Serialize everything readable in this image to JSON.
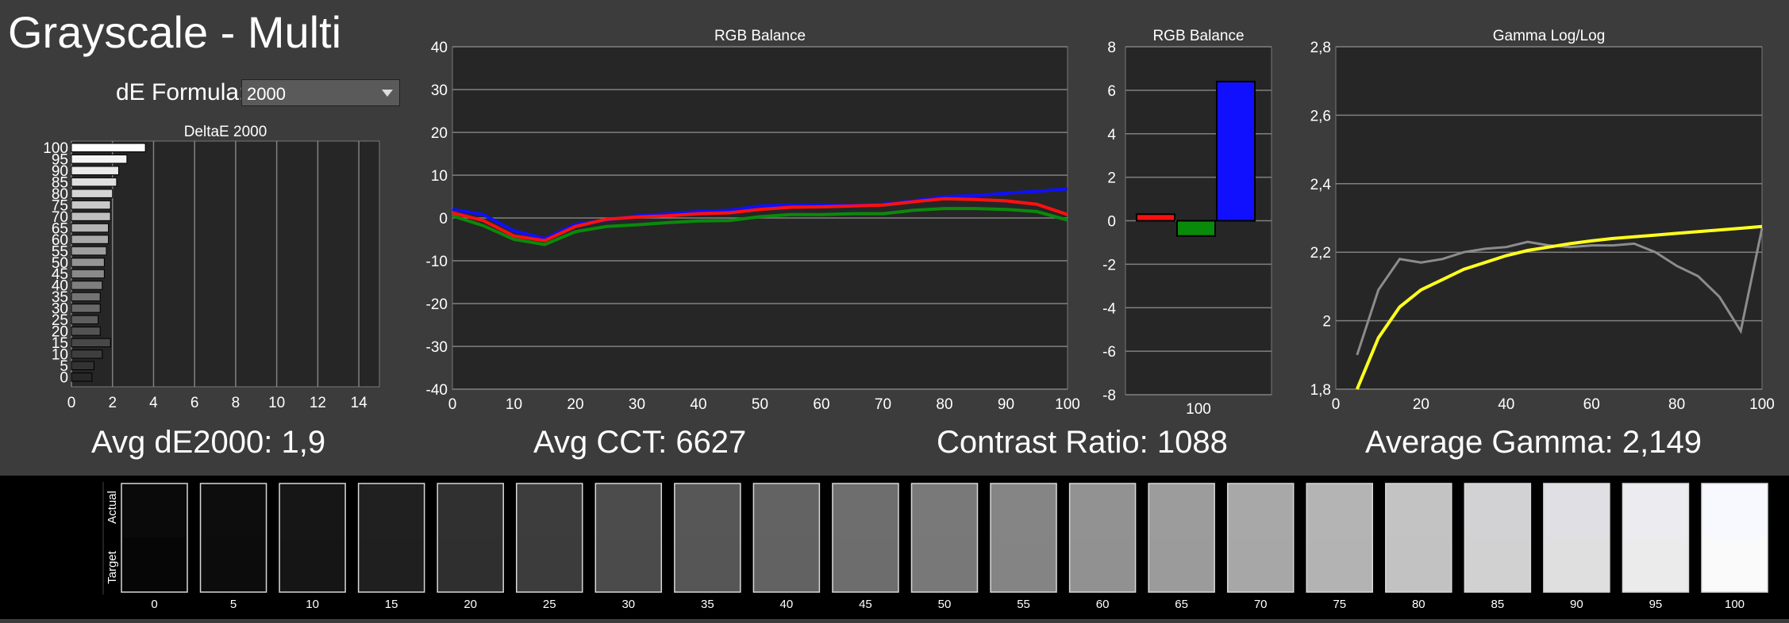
{
  "app": {
    "title": "Grayscale - Multi",
    "de_formula_label": "dE Formula:",
    "de_formula_value": "2000"
  },
  "stats": {
    "avg_de": "Avg dE2000: 1,9",
    "avg_cct": "Avg CCT: 6627",
    "contrast": "Contrast Ratio: 1088",
    "avg_gamma": "Average Gamma: 2,149"
  },
  "colors": {
    "background": "#3c3c3c",
    "plot_bg": "#262626",
    "red": "#ff1010",
    "green": "#0a8a0a",
    "blue": "#1010ff",
    "gamma_target": "#ffff20",
    "gamma_measured": "#8c8c8c"
  },
  "chart_data": [
    {
      "type": "bar",
      "orientation": "horizontal",
      "title": "DeltaE 2000",
      "categories": [
        "100",
        "95",
        "90",
        "85",
        "80",
        "75",
        "70",
        "65",
        "60",
        "55",
        "50",
        "45",
        "40",
        "35",
        "30",
        "25",
        "20",
        "15",
        "10",
        "5",
        "0"
      ],
      "values": [
        3.6,
        2.7,
        2.3,
        2.2,
        2.0,
        1.9,
        1.9,
        1.8,
        1.8,
        1.7,
        1.6,
        1.6,
        1.5,
        1.4,
        1.4,
        1.3,
        1.4,
        1.9,
        1.5,
        1.1,
        1.0
      ],
      "xlim": [
        0,
        15
      ],
      "xticks": [
        "0",
        "2",
        "4",
        "6",
        "8",
        "10",
        "12",
        "14"
      ],
      "yticks": [
        "100",
        "95",
        "90",
        "85",
        "80",
        "75",
        "70",
        "65",
        "60",
        "55",
        "50",
        "45",
        "40",
        "35",
        "30",
        "25",
        "20",
        "15",
        "10",
        "5",
        "0"
      ]
    },
    {
      "type": "line",
      "title": "RGB Balance",
      "x": [
        0,
        5,
        10,
        15,
        20,
        25,
        30,
        35,
        40,
        45,
        50,
        55,
        60,
        65,
        70,
        75,
        80,
        85,
        90,
        95,
        100
      ],
      "series": [
        {
          "values": [
            2.0,
            0.8,
            -3.0,
            -4.8,
            -1.5,
            -0.5,
            0.5,
            1.0,
            1.5,
            1.8,
            2.8,
            3.0,
            3.0,
            3.0,
            3.2,
            4.0,
            5.0,
            5.2,
            5.8,
            6.2,
            6.8
          ]
        },
        {
          "values": [
            1.2,
            -0.6,
            -4.2,
            -5.3,
            -2.0,
            -0.3,
            0.2,
            0.5,
            1.0,
            1.2,
            2.0,
            2.5,
            2.6,
            2.8,
            3.0,
            3.8,
            4.5,
            4.3,
            4.0,
            3.2,
            0.8
          ]
        },
        {
          "values": [
            0.5,
            -1.8,
            -5.0,
            -6.2,
            -3.2,
            -2.0,
            -1.6,
            -1.1,
            -0.7,
            -0.6,
            0.3,
            0.8,
            0.8,
            1.0,
            1.0,
            1.8,
            2.2,
            2.2,
            2.0,
            1.5,
            -0.5
          ]
        }
      ],
      "xlim": [
        0,
        100
      ],
      "ylim": [
        -40,
        40
      ],
      "xticks": [
        "0",
        "10",
        "20",
        "30",
        "40",
        "50",
        "60",
        "70",
        "80",
        "90",
        "100"
      ],
      "yticks": [
        "40",
        "30",
        "20",
        "10",
        "0",
        "-10",
        "-20",
        "-30",
        "-40"
      ]
    },
    {
      "type": "bar",
      "title": "RGB Balance",
      "categories": [
        "100"
      ],
      "series": [
        {
          "values": [
            0.3
          ]
        },
        {
          "values": [
            -0.7
          ]
        },
        {
          "values": [
            6.4
          ]
        }
      ],
      "ylim": [
        -8,
        8
      ],
      "yticks": [
        "8",
        "6",
        "4",
        "2",
        "0",
        "-2",
        "-4",
        "-6",
        "-8"
      ]
    },
    {
      "type": "line",
      "title": "Gamma Log/Log",
      "x": [
        5,
        10,
        15,
        20,
        25,
        30,
        35,
        40,
        45,
        50,
        55,
        60,
        65,
        70,
        75,
        80,
        85,
        90,
        95,
        100
      ],
      "series": [
        {
          "values": [
            1.8,
            1.95,
            2.04,
            2.09,
            2.12,
            2.15,
            2.17,
            2.19,
            2.205,
            2.215,
            2.225,
            2.233,
            2.24,
            2.245,
            2.25,
            2.255,
            2.26,
            2.265,
            2.27,
            2.275
          ]
        },
        {
          "values": [
            1.9,
            2.09,
            2.18,
            2.17,
            2.18,
            2.2,
            2.21,
            2.215,
            2.23,
            2.22,
            2.215,
            2.22,
            2.22,
            2.225,
            2.2,
            2.16,
            2.13,
            2.07,
            1.97,
            2.27
          ]
        }
      ],
      "xlim": [
        0,
        100
      ],
      "ylim": [
        1.8,
        2.8
      ],
      "xticks": [
        "0",
        "20",
        "40",
        "60",
        "80",
        "100"
      ],
      "yticks": [
        "2,8",
        "2,6",
        "2,4",
        "2,2",
        "2",
        "1,8"
      ]
    }
  ],
  "swatches": {
    "actual_label": "Actual",
    "target_label": "Target",
    "items": [
      {
        "label": "0",
        "actual": "#0a0a0a",
        "target": "#060606"
      },
      {
        "label": "5",
        "actual": "#0d0d0d",
        "target": "#0c0c0c"
      },
      {
        "label": "10",
        "actual": "#161616",
        "target": "#151515"
      },
      {
        "label": "15",
        "actual": "#202020",
        "target": "#1f1f1f"
      },
      {
        "label": "20",
        "actual": "#303030",
        "target": "#2f2f2f"
      },
      {
        "label": "25",
        "actual": "#3d3d3d",
        "target": "#3c3c3c"
      },
      {
        "label": "30",
        "actual": "#4c4c4c",
        "target": "#4b4b4b"
      },
      {
        "label": "35",
        "actual": "#575757",
        "target": "#565656"
      },
      {
        "label": "40",
        "actual": "#636363",
        "target": "#626262"
      },
      {
        "label": "45",
        "actual": "#6e6e6e",
        "target": "#6d6d6d"
      },
      {
        "label": "50",
        "actual": "#797979",
        "target": "#787878"
      },
      {
        "label": "55",
        "actual": "#858585",
        "target": "#848484"
      },
      {
        "label": "60",
        "actual": "#929292",
        "target": "#919191"
      },
      {
        "label": "65",
        "actual": "#9c9c9c",
        "target": "#9b9b9b"
      },
      {
        "label": "70",
        "actual": "#a8a8a8",
        "target": "#a7a7a7"
      },
      {
        "label": "75",
        "actual": "#b4b4b4",
        "target": "#b3b3b3"
      },
      {
        "label": "80",
        "actual": "#c3c3c3",
        "target": "#c2c2c2"
      },
      {
        "label": "85",
        "actual": "#d2d2d4",
        "target": "#d1d1d1"
      },
      {
        "label": "90",
        "actual": "#e0e0e4",
        "target": "#dfdfdf"
      },
      {
        "label": "95",
        "actual": "#ececf0",
        "target": "#ebebeb"
      },
      {
        "label": "100",
        "actual": "#f8f8ff",
        "target": "#fafafa"
      }
    ]
  }
}
